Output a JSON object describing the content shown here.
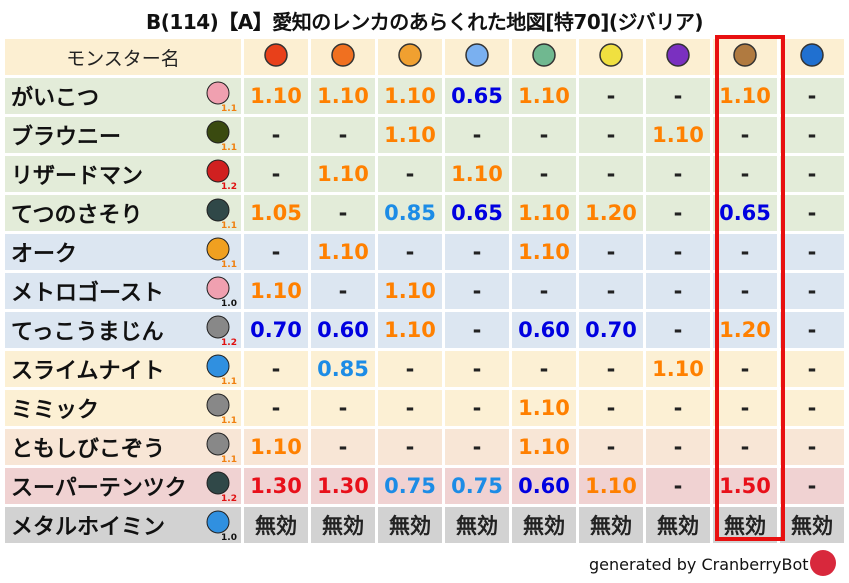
{
  "title": "B(114)【A】愛知のレンカのあらくれた地図[特70](ジバリア)",
  "header": {
    "name_col": "モンスター名",
    "elements": [
      "fire-meteor-icon",
      "flame-icon",
      "explosion-icon",
      "ice-icon",
      "tornado-icon",
      "lightning-icon",
      "dark-icon",
      "earth-icon",
      "water-icon"
    ],
    "highlighted_element": "earth-icon",
    "highlight_color": "#e81010"
  },
  "rows": [
    {
      "name": "がいこつ",
      "icon": "skull-icon",
      "rank": "1.1",
      "band": "g",
      "values": [
        "1.10",
        "1.10",
        "1.10",
        "0.65",
        "1.10",
        "-",
        "-",
        "1.10",
        "-"
      ]
    },
    {
      "name": "ブラウニー",
      "icon": "brownie-icon",
      "rank": "1.1",
      "band": "g",
      "values": [
        "-",
        "-",
        "1.10",
        "-",
        "-",
        "-",
        "1.10",
        "-",
        "-"
      ]
    },
    {
      "name": "リザードマン",
      "icon": "dragon-icon",
      "rank": "1.2",
      "band": "g",
      "values": [
        "-",
        "1.10",
        "-",
        "1.10",
        "-",
        "-",
        "-",
        "-",
        "-"
      ]
    },
    {
      "name": "てつのさそり",
      "icon": "insect-icon",
      "rank": "1.1",
      "band": "g",
      "values": [
        "1.05",
        "-",
        "0.85",
        "0.65",
        "1.10",
        "1.20",
        "-",
        "0.65",
        "-"
      ]
    },
    {
      "name": "オーク",
      "icon": "paw-icon",
      "rank": "1.1",
      "band": "b",
      "values": [
        "-",
        "1.10",
        "-",
        "-",
        "1.10",
        "-",
        "-",
        "-",
        "-"
      ]
    },
    {
      "name": "メトロゴースト",
      "icon": "skull-icon",
      "rank": "1.0",
      "band": "b",
      "values": [
        "1.10",
        "-",
        "1.10",
        "-",
        "-",
        "-",
        "-",
        "-",
        "-"
      ]
    },
    {
      "name": "てっこうまじん",
      "icon": "brick-icon",
      "rank": "1.2",
      "band": "b",
      "values": [
        "0.70",
        "0.60",
        "1.10",
        "-",
        "0.60",
        "0.70",
        "-",
        "1.20",
        "-"
      ]
    },
    {
      "name": "スライムナイト",
      "icon": "slime-icon",
      "rank": "1.1",
      "band": "y",
      "values": [
        "-",
        "0.85",
        "-",
        "-",
        "-",
        "-",
        "1.10",
        "-",
        "-"
      ]
    },
    {
      "name": "ミミック",
      "icon": "brick-icon",
      "rank": "1.1",
      "band": "y",
      "values": [
        "-",
        "-",
        "-",
        "-",
        "1.10",
        "-",
        "-",
        "-",
        "-"
      ]
    },
    {
      "name": "ともしびこぞう",
      "icon": "brick-icon",
      "rank": "1.1",
      "band": "p",
      "values": [
        "1.10",
        "-",
        "-",
        "-",
        "1.10",
        "-",
        "-",
        "-",
        "-"
      ]
    },
    {
      "name": "スーパーテンツク",
      "icon": "insect-icon",
      "rank": "1.2",
      "band": "r",
      "values": [
        "1.30",
        "1.30",
        "0.75",
        "0.75",
        "0.60",
        "1.10",
        "-",
        "1.50",
        "-"
      ]
    },
    {
      "name": "メタルホイミン",
      "icon": "slime-icon",
      "rank": "1.0",
      "band": "k",
      "values": [
        "無効",
        "無効",
        "無効",
        "無効",
        "無効",
        "無効",
        "無効",
        "無効",
        "無効"
      ]
    }
  ],
  "footer": "generated by CranberryBot",
  "colors": {
    "1.05": "#ff8000",
    "1.10": "#ff8000",
    "1.20": "#ff8000",
    "0.85": "#1c8ce6",
    "0.75": "#1c8ce6",
    "0.65": "#0000e0",
    "0.70": "#0000e0",
    "0.60": "#0000e0",
    "1.30": "#e8101a",
    "1.50": "#e8101a"
  }
}
